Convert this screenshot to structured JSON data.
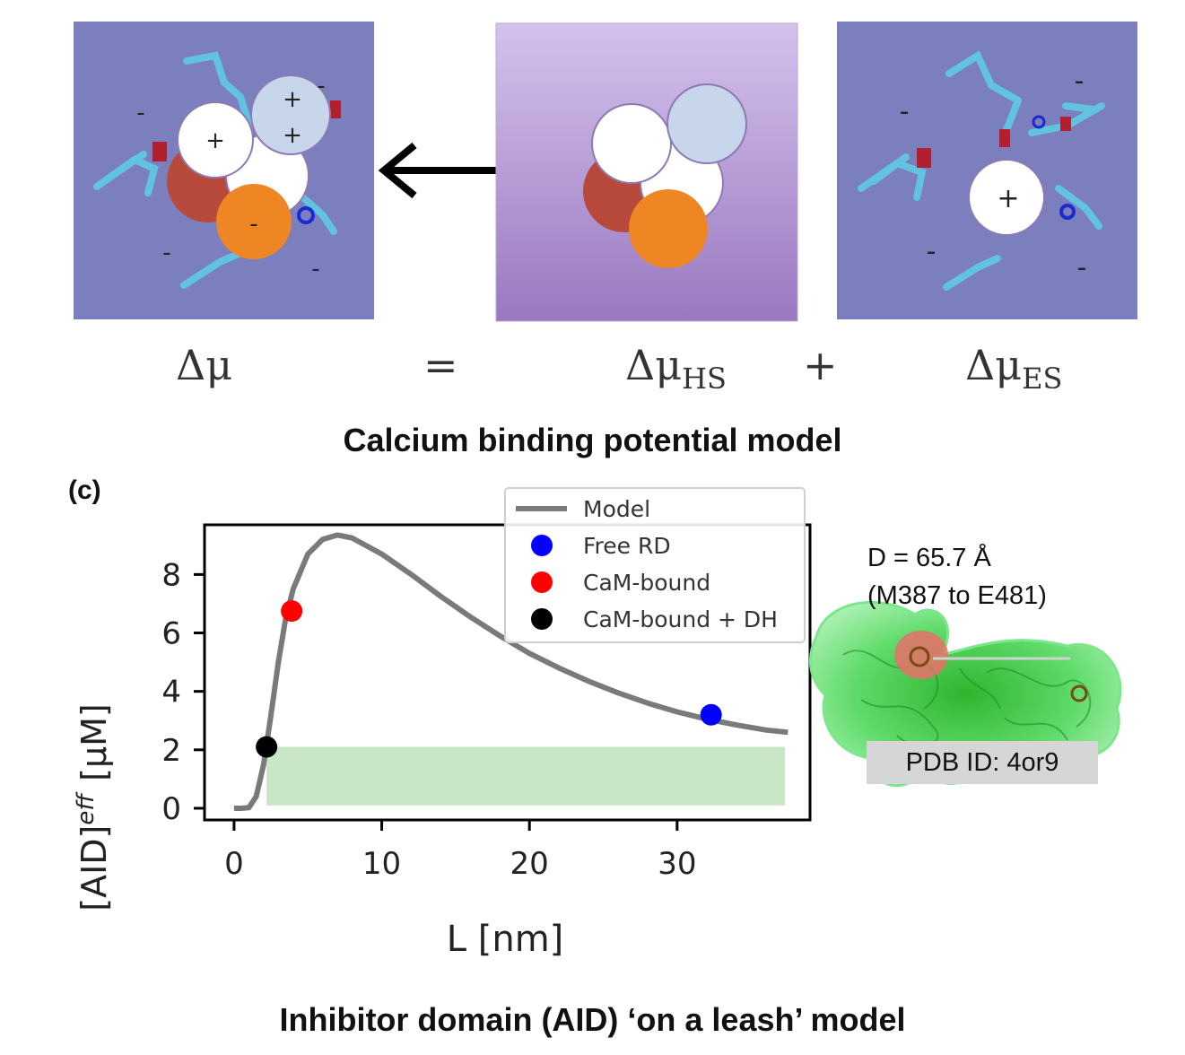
{
  "top": {
    "charges_left_panel": [
      "+",
      "+",
      "+",
      "-",
      "-",
      "-",
      "-",
      "-"
    ],
    "charges_right_panel": [
      "+",
      "-",
      "-",
      "-",
      "-"
    ],
    "equation": {
      "mu": "Δμ",
      "equals": "=",
      "mu_hs_base": "Δμ",
      "mu_hs_sub": "HS",
      "plus": "+",
      "mu_es_base": "Δμ",
      "mu_es_sub": "ES"
    },
    "caption": "Calcium binding potential model"
  },
  "bottom": {
    "panel_label": "(c)",
    "annotation_line1": "D = 65.7 Å",
    "annotation_line2": "(M387 to E481)",
    "pdb_label": "PDB ID: 4or9",
    "caption": "Inhibitor domain (AID) ‘on a leash’  model"
  },
  "colors": {
    "panel_blue": "#7b7fbd",
    "panel_purple_top": "#d4c2ec",
    "panel_purple_bottom": "#9a78c0",
    "ion_white": "#ffffff",
    "ion_lightblue": "#c7d6ea",
    "ion_brown": "#b84a3c",
    "ion_orange": "#ef8624",
    "model_line": "#7a7a7a",
    "band": "#c9e6c6"
  },
  "chart_data": {
    "type": "line",
    "title": "",
    "xlabel": "L [nm]",
    "ylabel": "[AID]eff  [μM]",
    "ylabel_main": "[AID]",
    "ylabel_sup": "eff",
    "ylabel_unit": "[μM]",
    "xlim": [
      -2,
      39
    ],
    "ylim": [
      -0.4,
      9.7
    ],
    "xticks": [
      0,
      10,
      20,
      30
    ],
    "yticks": [
      0,
      2,
      4,
      6,
      8
    ],
    "legend_position": "top-right",
    "series": [
      {
        "name": "Model",
        "color": "#7a7a7a",
        "x": [
          0,
          0.5,
          1.0,
          1.5,
          2.0,
          2.5,
          3.0,
          3.5,
          4.0,
          5.0,
          6.0,
          7.0,
          8.0,
          10,
          12,
          14,
          16,
          18,
          20,
          22,
          24,
          26,
          28,
          30,
          32,
          34,
          36,
          37.5
        ],
        "y": [
          0,
          0,
          0.02,
          0.4,
          1.5,
          3.2,
          5.0,
          6.5,
          7.5,
          8.7,
          9.2,
          9.35,
          9.25,
          8.7,
          8.0,
          7.25,
          6.55,
          5.9,
          5.3,
          4.8,
          4.35,
          3.95,
          3.6,
          3.3,
          3.05,
          2.85,
          2.68,
          2.6
        ]
      },
      {
        "name": "Free RD",
        "color": "#0000ff",
        "type": "scatter",
        "x": [
          32.3
        ],
        "y": [
          3.2
        ]
      },
      {
        "name": "CaM-bound",
        "color": "#ff0000",
        "type": "scatter",
        "x": [
          3.9
        ],
        "y": [
          6.75
        ]
      },
      {
        "name": "CaM-bound + DH",
        "color": "#000000",
        "type": "scatter",
        "x": [
          2.2
        ],
        "y": [
          2.1
        ]
      }
    ],
    "band": {
      "x0": 2.2,
      "x1": 37.3,
      "y0": 0.1,
      "y1": 2.1
    }
  }
}
